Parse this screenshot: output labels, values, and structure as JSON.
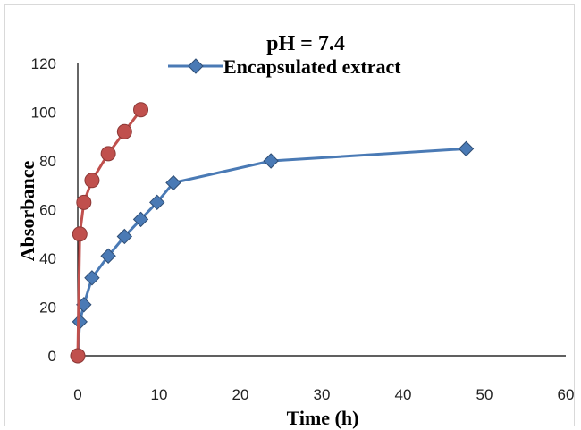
{
  "chart_data": {
    "type": "scatter",
    "title": "pH = 7.4",
    "xlabel": "Time (h)",
    "ylabel": "Absorbance",
    "xlim": [
      0,
      60
    ],
    "ylim": [
      0,
      120
    ],
    "x_ticks": [
      "0",
      "10",
      "20",
      "30",
      "40",
      "50",
      "60"
    ],
    "y_ticks": [
      "0",
      "20",
      "40",
      "60",
      "80",
      "100",
      "120"
    ],
    "grid": false,
    "legend_position": "top",
    "series": [
      {
        "name": "Encapsulated extract",
        "color": "#4a7ab5",
        "marker": "diamond",
        "x": [
          0,
          0.25,
          0.75,
          1.75,
          3.75,
          5.75,
          7.75,
          9.75,
          11.75,
          23.75,
          47.75
        ],
        "y": [
          0,
          14,
          21,
          32,
          41,
          49,
          56,
          63,
          71,
          80,
          85
        ]
      },
      {
        "name": "",
        "color": "#c0504d",
        "marker": "circle",
        "x": [
          0,
          0.25,
          0.75,
          1.75,
          3.75,
          5.75,
          7.75
        ],
        "y": [
          0,
          50,
          63,
          72,
          83,
          92,
          101
        ]
      }
    ]
  }
}
